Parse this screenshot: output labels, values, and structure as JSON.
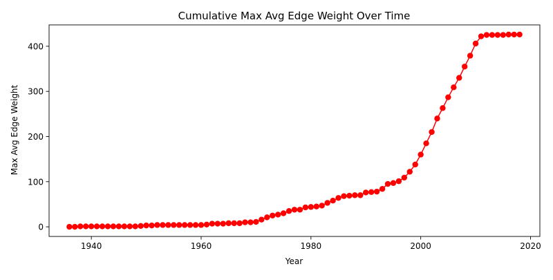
{
  "chart_data": {
    "type": "line",
    "title": "Cumulative Max Avg Edge Weight Over Time",
    "xlabel": "Year",
    "ylabel": "Max Avg Edge Weight",
    "xlim": [
      1932.3,
      2021.7
    ],
    "ylim": [
      -21.3,
      447.3
    ],
    "xticks": [
      1940,
      1960,
      1980,
      2000,
      2020
    ],
    "yticks": [
      0,
      100,
      200,
      300,
      400
    ],
    "grid": false,
    "legend": "none",
    "series": [
      {
        "color": "#ff0000",
        "marker": "circle",
        "x": [
          1936,
          1937,
          1938,
          1939,
          1940,
          1941,
          1942,
          1943,
          1944,
          1945,
          1946,
          1947,
          1948,
          1949,
          1950,
          1951,
          1952,
          1953,
          1954,
          1955,
          1956,
          1957,
          1958,
          1959,
          1960,
          1961,
          1962,
          1963,
          1964,
          1965,
          1966,
          1967,
          1968,
          1969,
          1970,
          1971,
          1972,
          1973,
          1974,
          1975,
          1976,
          1977,
          1978,
          1979,
          1980,
          1981,
          1982,
          1983,
          1984,
          1985,
          1986,
          1987,
          1988,
          1989,
          1990,
          1991,
          1992,
          1993,
          1994,
          1995,
          1996,
          1997,
          1998,
          1999,
          2000,
          2001,
          2002,
          2003,
          2004,
          2005,
          2006,
          2007,
          2008,
          2009,
          2010,
          2011,
          2012,
          2013,
          2014,
          2015,
          2016,
          2017,
          2018
        ],
        "y": [
          0,
          0,
          1,
          1,
          1,
          1,
          1,
          1,
          1,
          1,
          1,
          1,
          1,
          2,
          3,
          3,
          4,
          4,
          4,
          4,
          4,
          4,
          4,
          4,
          4,
          5,
          7,
          7,
          7,
          8,
          8,
          8,
          10,
          10,
          11,
          16,
          21,
          25,
          27,
          30,
          35,
          38,
          38,
          43,
          44,
          45,
          47,
          53,
          58,
          64,
          68,
          69,
          70,
          70,
          76,
          77,
          78,
          84,
          95,
          97,
          101,
          109,
          122,
          138,
          160,
          185,
          210,
          240,
          263,
          287,
          309,
          330,
          355,
          379,
          406,
          422,
          425,
          425,
          425,
          425,
          426,
          426,
          426
        ]
      }
    ]
  }
}
